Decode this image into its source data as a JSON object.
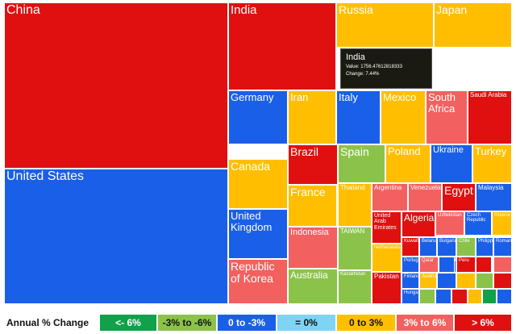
{
  "chart_data": {
    "type": "treemap",
    "colors": {
      "lt_neg6": "#12a14b",
      "neg6_neg3": "#8bc34a",
      "neg3_0": "#1a5fe8",
      "zero": "#7fd4f5",
      "0_3": "#ffbf00",
      "3_6": "#f2615f",
      "gt6": "#e01010"
    },
    "tooltip": {
      "title": "India",
      "value_line": "Value: 1756.47612818333",
      "change_line": "Change: 7.44%"
    },
    "legend": {
      "title": "Annual % Change",
      "items": [
        {
          "label": "<- 6%",
          "color": "#12a14b",
          "text_color": "#ffffff"
        },
        {
          "label": "-3% to -6%",
          "color": "#8bc34a",
          "text_color": "#111111"
        },
        {
          "label": "0 to -3%",
          "color": "#1a5fe8",
          "text_color": "#ffffff"
        },
        {
          "label": "= 0%",
          "color": "#7fd4f5",
          "text_color": "#111111"
        },
        {
          "label": "0 to 3%",
          "color": "#ffbf00",
          "text_color": "#111111"
        },
        {
          "label": "3% to 6%",
          "color": "#f2615f",
          "text_color": "#ffffff"
        },
        {
          "label": "> 6%",
          "color": "#e01010",
          "text_color": "#ffffff"
        }
      ]
    },
    "cells": [
      {
        "label": "China",
        "color": "#e01010"
      },
      {
        "label": "United States",
        "color": "#1a5fe8"
      },
      {
        "label": "India",
        "color": "#e01010"
      },
      {
        "label": "Russia",
        "color": "#ffbf00"
      },
      {
        "label": "Japan",
        "color": "#ffbf00"
      },
      {
        "label": "Germany",
        "color": "#1a5fe8"
      },
      {
        "label": "Iran",
        "color": "#ffbf00"
      },
      {
        "label": "Italy",
        "color": "#1a5fe8"
      },
      {
        "label": "Mexico",
        "color": "#ffbf00"
      },
      {
        "label": "South Africa",
        "color": "#f2615f"
      },
      {
        "label": "Saudi Arabia",
        "color": "#e01010"
      },
      {
        "label": "Canada",
        "color": "#ffbf00"
      },
      {
        "label": "Brazil",
        "color": "#e01010"
      },
      {
        "label": "Spain",
        "color": "#8bc34a"
      },
      {
        "label": "Poland",
        "color": "#ffbf00"
      },
      {
        "label": "Ukraine",
        "color": "#1a5fe8"
      },
      {
        "label": "Turkey",
        "color": "#ffbf00"
      },
      {
        "label": "France",
        "color": "#ffbf00"
      },
      {
        "label": "Thailand",
        "color": "#ffbf00"
      },
      {
        "label": "Argentina",
        "color": "#f2615f"
      },
      {
        "label": "Venezuela",
        "color": "#f2615f"
      },
      {
        "label": "Egypt",
        "color": "#e01010"
      },
      {
        "label": "Malaysia",
        "color": "#1a5fe8"
      },
      {
        "label": "United Kingdom",
        "color": "#1a5fe8"
      },
      {
        "label": "Indonesia",
        "color": "#f2615f"
      },
      {
        "label": "TAIWAN",
        "color": "#8bc34a"
      },
      {
        "label": "United Arab Emirates",
        "color": "#e01010"
      },
      {
        "label": "Algeria",
        "color": "#e01010"
      },
      {
        "label": "Uzbekistan",
        "color": "#f2615f"
      },
      {
        "label": "Czech Republic",
        "color": "#1a5fe8"
      },
      {
        "label": "Greece",
        "color": "#ffbf00"
      },
      {
        "label": "Netherlands",
        "color": "#ffbf00"
      },
      {
        "label": "Kuwait",
        "color": "#e01010"
      },
      {
        "label": "Belarus",
        "color": "#1a5fe8"
      },
      {
        "label": "Bulgaria",
        "color": "#1a5fe8"
      },
      {
        "label": "Chile",
        "color": "#8bc34a"
      },
      {
        "label": "Philippines",
        "color": "#1a5fe8"
      },
      {
        "label": "Romania",
        "color": "#1a5fe8"
      },
      {
        "label": "Portugal",
        "color": "#1a5fe8"
      },
      {
        "label": "Qatar",
        "color": "#f2615f"
      },
      {
        "label": "Kazakhstan",
        "color": "#1a5fe8"
      },
      {
        "label": "Peru",
        "color": "#e01010"
      },
      {
        "label": "Republic of Korea",
        "color": "#f2615f"
      },
      {
        "label": "Australia",
        "color": "#8bc34a"
      },
      {
        "label": "Kazakhstan",
        "color": "#8bc34a"
      },
      {
        "label": "Pakistan",
        "color": "#e01010"
      },
      {
        "label": "Finland",
        "color": "#1a5fe8"
      },
      {
        "label": "Hungary",
        "color": "#1a5fe8"
      },
      {
        "label": "Austria",
        "color": "#ffbf00"
      },
      {
        "label": "",
        "color": "#1a5fe8"
      },
      {
        "label": "",
        "color": "#ffbf00"
      },
      {
        "label": "",
        "color": "#8bc34a"
      },
      {
        "label": "",
        "color": "#e01010"
      },
      {
        "label": "",
        "color": "#12a14b"
      },
      {
        "label": "",
        "color": "#f2615f"
      },
      {
        "label": "",
        "color": "#1a5fe8"
      },
      {
        "label": "",
        "color": "#8bc34a"
      },
      {
        "label": "",
        "color": "#e01010"
      },
      {
        "label": "",
        "color": "#ffbf00"
      },
      {
        "label": "",
        "color": "#1a5fe8"
      },
      {
        "label": "",
        "color": "#e01010"
      },
      {
        "label": "",
        "color": "#f2615f"
      },
      {
        "label": "",
        "color": "#8bc34a"
      },
      {
        "label": "",
        "color": "#1a5fe8"
      },
      {
        "label": "",
        "color": "#e01010"
      },
      {
        "label": "",
        "color": "#ffbf00"
      },
      {
        "label": "",
        "color": "#12a14b"
      },
      {
        "label": "",
        "color": "#1a5fe8"
      }
    ]
  }
}
